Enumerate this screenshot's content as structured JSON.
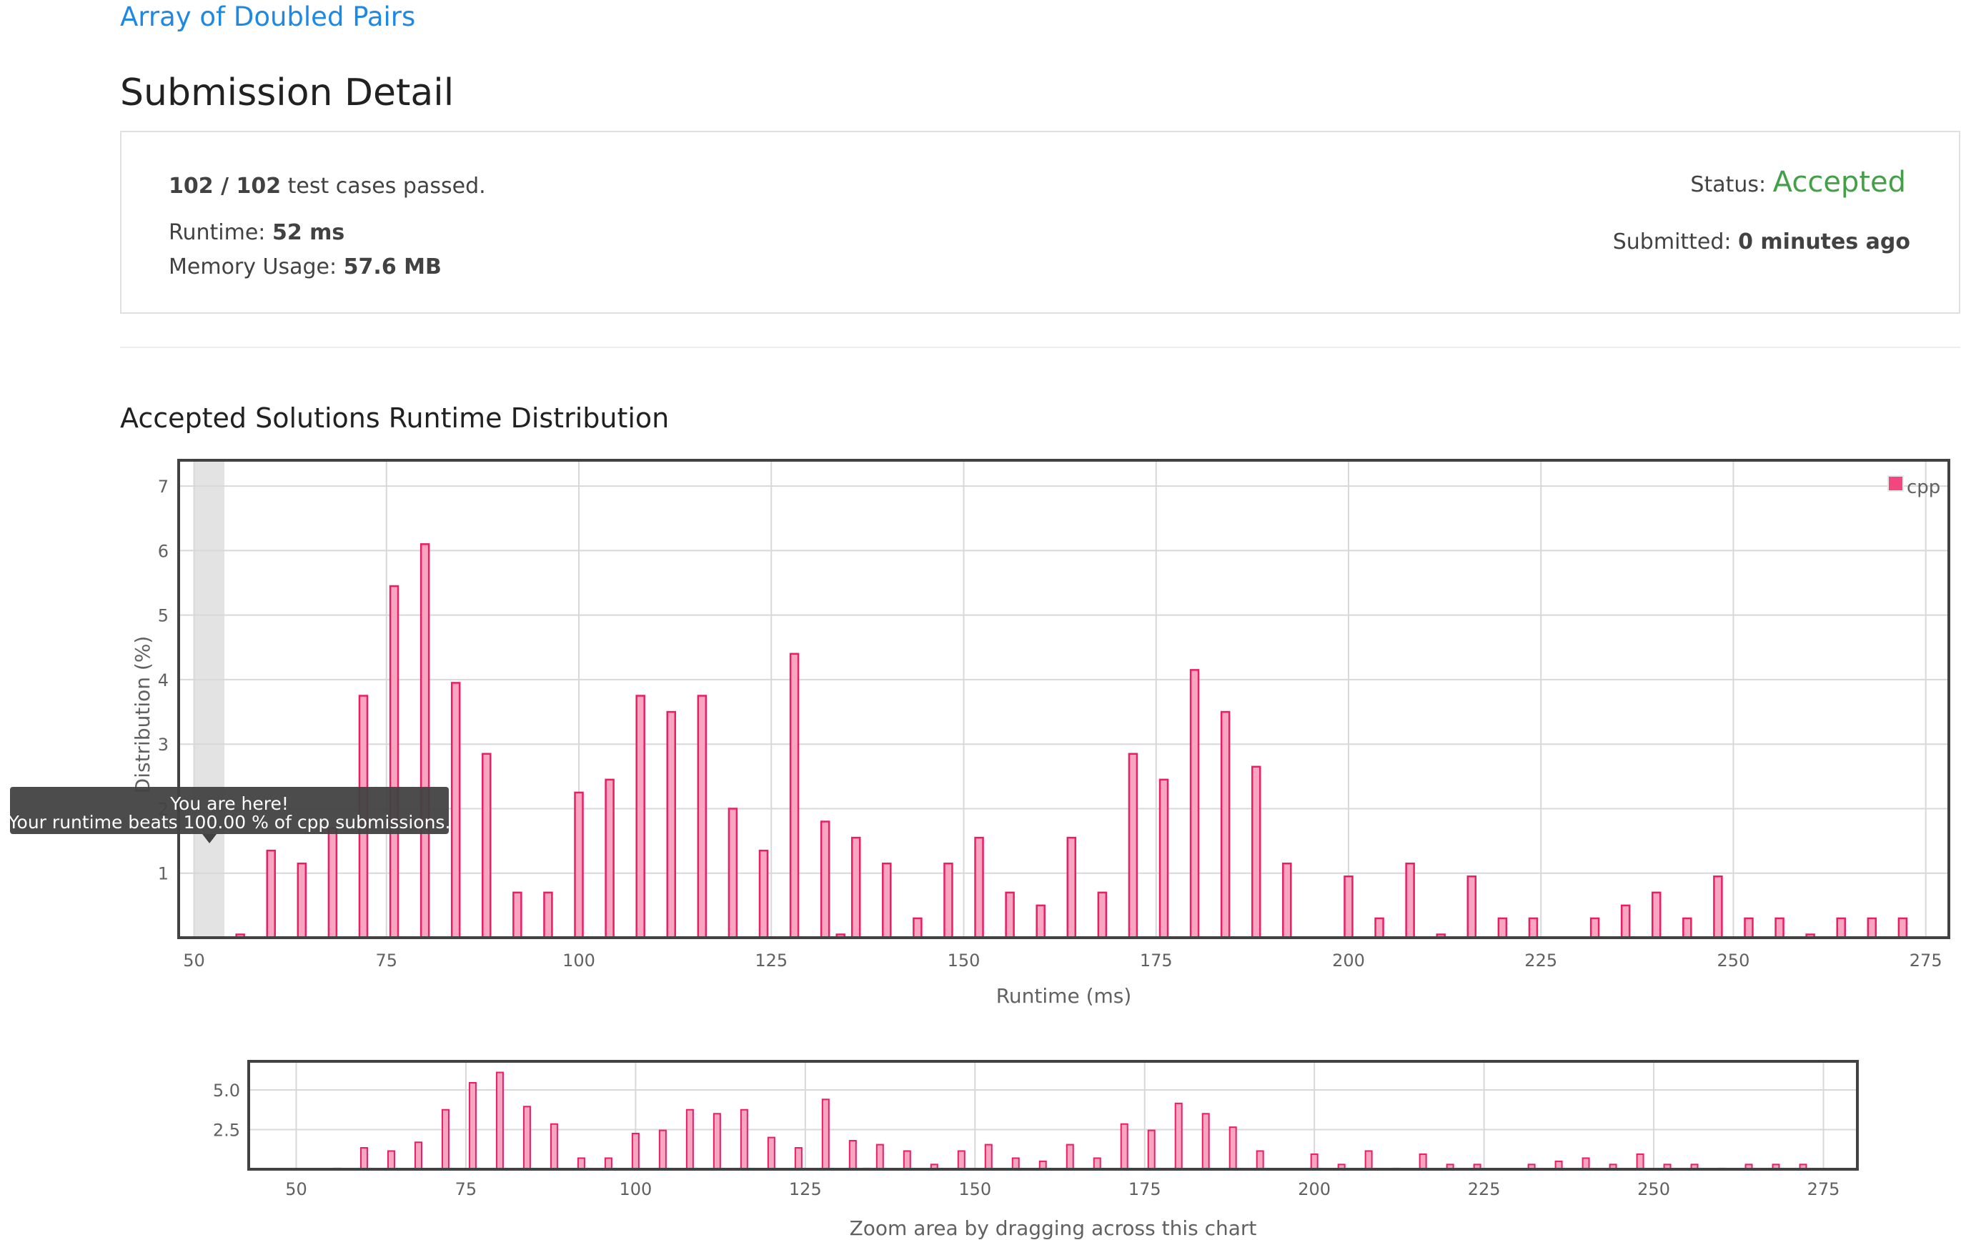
{
  "problem": {
    "title": "Array of Doubled Pairs"
  },
  "page": {
    "title": "Submission Detail"
  },
  "detail": {
    "tests_passed": "102 / 102",
    "tests_text": "test cases passed.",
    "runtime_label": "Runtime:",
    "runtime_value": "52 ms",
    "memory_label": "Memory Usage:",
    "memory_value": "57.6 MB",
    "status_label": "Status:",
    "status_value": "Accepted",
    "submitted_label": "Submitted:",
    "submitted_value": "0 minutes ago"
  },
  "colors": {
    "link": "#1e88e5",
    "accepted": "#43a047",
    "bar_fill": "#f8a5c2",
    "bar_stroke": "#e91e63"
  },
  "section": {
    "title": "Accepted Solutions Runtime Distribution"
  },
  "tooltip": {
    "line1": "You are here!",
    "line2": "Your runtime beats 100.00 % of cpp submissions.",
    "runtime_marker": 52
  },
  "zoom_caption": "Zoom area by dragging across this chart",
  "chart_data": [
    {
      "type": "bar",
      "xlabel": "Runtime (ms)",
      "ylabel": "Distribution (%)",
      "xlim": [
        48,
        278
      ],
      "ylim": [
        0,
        7.4
      ],
      "x_ticks": [
        50,
        75,
        100,
        125,
        150,
        175,
        200,
        225,
        250,
        275
      ],
      "y_ticks": [
        1,
        2,
        3,
        4,
        5,
        6,
        7
      ],
      "legend": "top-right",
      "grid": true,
      "series": [
        {
          "name": "cpp",
          "x": [
            56,
            60,
            64,
            68,
            72,
            76,
            80,
            84,
            88,
            92,
            96,
            100,
            104,
            108,
            112,
            116,
            120,
            124,
            128,
            132,
            134,
            136,
            140,
            144,
            148,
            152,
            156,
            160,
            164,
            168,
            172,
            176,
            180,
            184,
            188,
            192,
            200,
            204,
            208,
            212,
            216,
            220,
            224,
            232,
            236,
            240,
            244,
            248,
            252,
            256,
            260,
            264,
            268,
            272
          ],
          "values": [
            0.05,
            1.35,
            1.15,
            1.7,
            3.75,
            5.45,
            6.1,
            3.95,
            2.85,
            0.7,
            0.7,
            2.25,
            2.45,
            3.75,
            3.5,
            3.75,
            2.0,
            1.35,
            4.4,
            1.8,
            0.05,
            1.55,
            1.15,
            0.3,
            1.15,
            1.55,
            0.7,
            0.5,
            1.55,
            0.7,
            2.85,
            2.45,
            4.15,
            3.5,
            2.65,
            1.15,
            0.95,
            0.3,
            1.15,
            0.05,
            0.95,
            0.3,
            0.3,
            0.3,
            0.5,
            0.7,
            0.3,
            0.95,
            0.3,
            0.3,
            0.05,
            0.3,
            0.3,
            0.3
          ]
        }
      ]
    },
    {
      "type": "bar",
      "xlim": [
        43,
        280
      ],
      "ylim": [
        0,
        6.8
      ],
      "x_ticks": [
        50,
        75,
        100,
        125,
        150,
        175,
        200,
        225,
        250,
        275
      ],
      "y_ticks": [
        2.5,
        5.0
      ],
      "y_tick_labels": [
        "2.5",
        "5.0"
      ],
      "grid": true,
      "series": [
        {
          "name": "cpp",
          "source": "same as main chart"
        }
      ]
    }
  ]
}
